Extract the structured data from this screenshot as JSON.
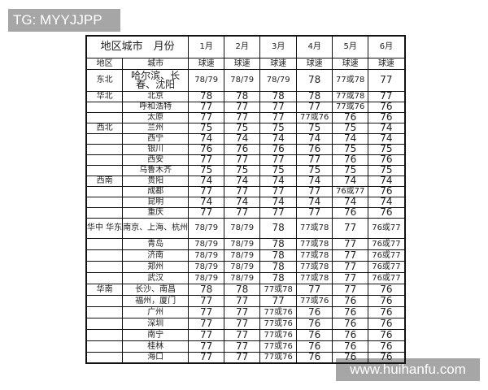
{
  "watermarks": {
    "top_left": "TG: MYYJJPP",
    "bottom_right": "www.huihanfu.com"
  },
  "header": {
    "title": "地区城市　月份",
    "months": [
      "1月",
      "2月",
      "3月",
      "4月",
      "5月",
      "6月"
    ],
    "region_label": "地区",
    "city_label": "城市",
    "speed_label": "球速"
  },
  "rows": [
    {
      "region": "东北",
      "city": "哈尔滨、长春、沈阳",
      "values": [
        "78/79",
        "78/79",
        "78/79",
        "78",
        "77或78",
        "77"
      ]
    },
    {
      "region": "华北",
      "city": "北京",
      "values": [
        "78",
        "78",
        "78",
        "78",
        "77或78",
        "77"
      ]
    },
    {
      "region": "",
      "city": "呼和浩特",
      "values": [
        "77",
        "77",
        "77",
        "77",
        "77或76",
        "76"
      ]
    },
    {
      "region": "",
      "city": "太原",
      "values": [
        "77",
        "77",
        "77",
        "77或76",
        "76",
        "76"
      ]
    },
    {
      "region": "西北",
      "city": "兰州",
      "values": [
        "75",
        "75",
        "75",
        "75",
        "75",
        "74"
      ]
    },
    {
      "region": "",
      "city": "西宁",
      "values": [
        "74",
        "74",
        "74",
        "74",
        "74",
        "74"
      ]
    },
    {
      "region": "",
      "city": "银川",
      "values": [
        "76",
        "76",
        "76",
        "76",
        "75",
        "75"
      ]
    },
    {
      "region": "",
      "city": "西安",
      "values": [
        "77",
        "77",
        "77",
        "77",
        "76",
        "76"
      ]
    },
    {
      "region": "",
      "city": "乌鲁木齐",
      "values": [
        "75",
        "75",
        "75",
        "75",
        "75",
        "75"
      ]
    },
    {
      "region": "西南",
      "city": "贵阳",
      "values": [
        "74",
        "74",
        "74",
        "74",
        "74",
        "74"
      ]
    },
    {
      "region": "",
      "city": "成都",
      "values": [
        "77",
        "77",
        "77",
        "77",
        "76或77",
        "76"
      ]
    },
    {
      "region": "",
      "city": "昆明",
      "values": [
        "74",
        "74",
        "74",
        "74",
        "74",
        "74"
      ]
    },
    {
      "region": "",
      "city": "重庆",
      "values": [
        "77",
        "77",
        "77",
        "77",
        "76",
        "76"
      ]
    },
    {
      "region": "华中 华东",
      "city": "南京、上海、杭州",
      "values": [
        "78/79",
        "78/79",
        "78",
        "77或78",
        "77",
        "76或77"
      ]
    },
    {
      "region": "",
      "city": "青岛",
      "values": [
        "78/79",
        "78/79",
        "78",
        "77或78",
        "77",
        "76或77"
      ]
    },
    {
      "region": "",
      "city": "济南",
      "values": [
        "78/79",
        "78/79",
        "78",
        "77或78",
        "77",
        "76或77"
      ]
    },
    {
      "region": "",
      "city": "郑州",
      "values": [
        "78/79",
        "78/79",
        "78",
        "77或78",
        "77",
        "76或77"
      ]
    },
    {
      "region": "",
      "city": "武汉",
      "values": [
        "78/79",
        "78/79",
        "78",
        "77或78",
        "77",
        "76或77"
      ]
    },
    {
      "region": "华南",
      "city": "长沙、南昌",
      "values": [
        "78",
        "78",
        "77或78",
        "77",
        "77",
        "76"
      ]
    },
    {
      "region": "",
      "city": "福州，厦门",
      "values": [
        "77",
        "77",
        "77",
        "77或76",
        "76",
        "76"
      ]
    },
    {
      "region": "",
      "city": "广州",
      "values": [
        "77",
        "77",
        "77或76",
        "76",
        "76",
        "76"
      ]
    },
    {
      "region": "",
      "city": "深圳",
      "values": [
        "77",
        "77",
        "77或76",
        "76",
        "76",
        "76"
      ]
    },
    {
      "region": "",
      "city": "南宁",
      "values": [
        "77",
        "77",
        "77或76",
        "76",
        "76",
        "76"
      ]
    },
    {
      "region": "",
      "city": "桂林",
      "values": [
        "77",
        "77",
        "77或76",
        "76",
        "76",
        "76"
      ]
    },
    {
      "region": "",
      "city": "海口",
      "values": [
        "77",
        "77",
        "77或76",
        "76",
        "76",
        "76"
      ]
    }
  ]
}
